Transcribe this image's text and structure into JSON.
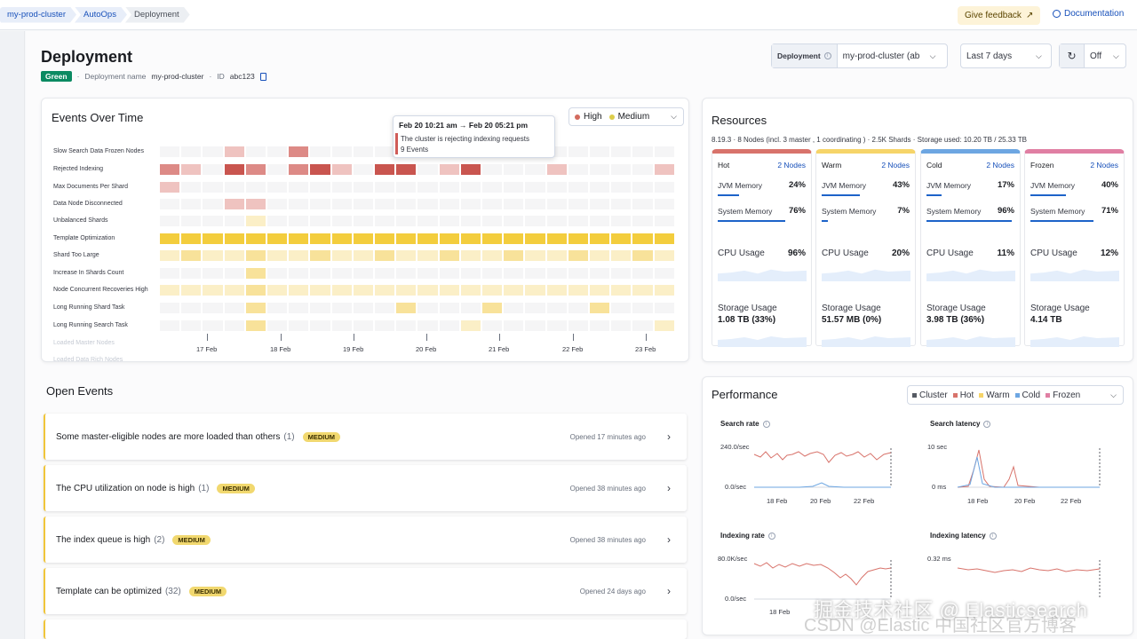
{
  "breadcrumbs": [
    "my-prod-cluster",
    "AutoOps",
    "Deployment"
  ],
  "header": {
    "feedback_label": "Give feedback",
    "docs_label": "Documentation"
  },
  "page": {
    "title": "Deployment",
    "status": "Green",
    "deployment_name_label": "Deployment name",
    "deployment_name": "my-prod-cluster",
    "id_label": "ID",
    "id": "abc123"
  },
  "controls": {
    "deployment_label": "Deployment",
    "deployment_value": "my-prod-cluster (ab",
    "time_range": "Last 7 days",
    "refresh_value": "Off"
  },
  "events_over_time": {
    "title": "Events Over Time",
    "legend": [
      {
        "label": "High",
        "color": "#d36b5e"
      },
      {
        "label": "Medium",
        "color": "#dccd4a"
      }
    ],
    "rows": [
      "Slow Search Data Frozen Nodes",
      "Rejected Indexing",
      "Max Documents Per Shard",
      "Data Node Disconnected",
      "Unbalanced Shards",
      "Template Optimization",
      "Shard Too Large",
      "Increase In Shards Count",
      "Node Concurrent Recoveries High",
      "Long Running Shard Task",
      "Long Running Search Task",
      "Loaded Master Nodes",
      "Loaded Data Rich Nodes"
    ],
    "x_ticks": [
      "17 Feb",
      "18 Feb",
      "19 Feb",
      "20 Feb",
      "21 Feb",
      "22 Feb",
      "23 Feb"
    ],
    "tooltip": {
      "title": "Feb 20 10:21 am → Feb 20 05:21 pm",
      "message": "The cluster is rejecting indexing requests",
      "count": "9 Events"
    }
  },
  "open_events": {
    "title": "Open Events",
    "items": [
      {
        "text": "Some master-eligible nodes are more loaded than others",
        "count": "(1)",
        "severity": "MEDIUM",
        "opened": "Opened 17 minutes ago"
      },
      {
        "text": "The CPU utilization on node is high",
        "count": "(1)",
        "severity": "MEDIUM",
        "opened": "Opened 38 minutes ago"
      },
      {
        "text": "The index queue is high",
        "count": "(2)",
        "severity": "MEDIUM",
        "opened": "Opened 38 minutes ago"
      },
      {
        "text": "Template can be optimized",
        "count": "(32)",
        "severity": "MEDIUM",
        "opened": "Opened 24 days ago"
      }
    ]
  },
  "resources": {
    "title": "Resources",
    "summary": "8.19.3 · 8 Nodes (incl. 3 master , 1 coordinating ) · 2.5K Shards · Storage used: 10.20 TB / 25.33 TB",
    "tiers": [
      {
        "name": "Hot",
        "nodes": "2 Nodes",
        "color": "#d8736b",
        "jvm_label": "JVM Memory",
        "jvm": "24%",
        "jvm_frac": 0.24,
        "sys_label": "System Memory",
        "sys": "76%",
        "sys_frac": 0.76,
        "cpu_label": "CPU Usage",
        "cpu": "96%",
        "storage_label": "Storage Usage",
        "storage": "1.08 TB (33%)"
      },
      {
        "name": "Warm",
        "nodes": "2 Nodes",
        "color": "#f6d469",
        "jvm_label": "JVM Memory",
        "jvm": "43%",
        "jvm_frac": 0.43,
        "sys_label": "System Memory",
        "sys": "7%",
        "sys_frac": 0.07,
        "cpu_label": "CPU Usage",
        "cpu": "20%",
        "storage_label": "Storage Usage",
        "storage": "51.57 MB (0%)"
      },
      {
        "name": "Cold",
        "nodes": "2 Nodes",
        "color": "#6da6e2",
        "jvm_label": "JVM Memory",
        "jvm": "17%",
        "jvm_frac": 0.17,
        "sys_label": "System Memory",
        "sys": "96%",
        "sys_frac": 0.96,
        "cpu_label": "CPU Usage",
        "cpu": "11%",
        "storage_label": "Storage Usage",
        "storage": "3.98 TB (36%)"
      },
      {
        "name": "Frozen",
        "nodes": "2 Nodes",
        "color": "#e07fa3",
        "jvm_label": "JVM Memory",
        "jvm": "40%",
        "jvm_frac": 0.4,
        "sys_label": "System Memory",
        "sys": "71%",
        "sys_frac": 0.71,
        "cpu_label": "CPU Usage",
        "cpu": "12%",
        "storage_label": "Storage Usage",
        "storage": "4.14 TB"
      }
    ]
  },
  "performance": {
    "title": "Performance",
    "legend": [
      {
        "label": "Cluster",
        "color": "#555a63"
      },
      {
        "label": "Hot",
        "color": "#d8736b"
      },
      {
        "label": "Warm",
        "color": "#f6d469"
      },
      {
        "label": "Cold",
        "color": "#6da6e2"
      },
      {
        "label": "Frozen",
        "color": "#e07fa3"
      }
    ],
    "charts": [
      {
        "title": "Search rate",
        "y_top": "240.0/sec",
        "y_bottom": "0.0/sec",
        "x_ticks": [
          "18 Feb",
          "20 Feb",
          "22 Feb"
        ]
      },
      {
        "title": "Search latency",
        "y_top": "10 sec",
        "y_bottom": "0 ms",
        "x_ticks": [
          "18 Feb",
          "20 Feb",
          "22 Feb"
        ]
      },
      {
        "title": "Indexing rate",
        "y_top": "80.0K/sec",
        "y_bottom": "0.0/sec",
        "x_ticks": [
          "18 Feb"
        ]
      },
      {
        "title": "Indexing latency",
        "y_top": "0.32 ms",
        "y_bottom": "",
        "x_ticks": []
      }
    ]
  },
  "watermark": {
    "line1": "掘金技术社区 @ Elasticsearch",
    "line2": "CSDN @Elastic 中国社区官方博客"
  }
}
